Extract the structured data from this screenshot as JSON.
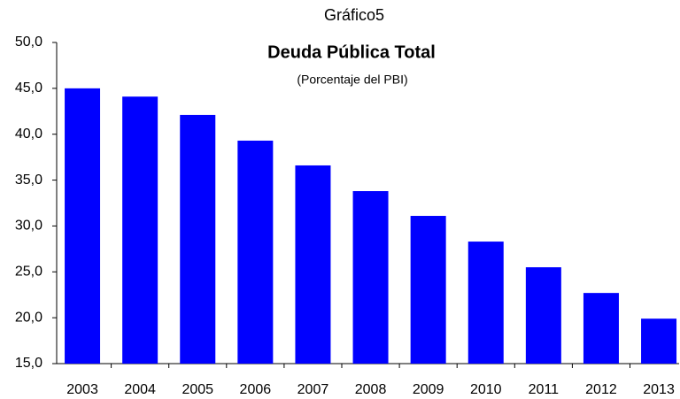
{
  "chart_data": {
    "type": "bar",
    "title": "Gráfico5",
    "subtitle": "Deuda Pública Total",
    "note": "(Porcentaje del PBI)",
    "categories": [
      "2003",
      "2004",
      "2005",
      "2006",
      "2007",
      "2008",
      "2009",
      "2010",
      "2011",
      "2012",
      "2013"
    ],
    "values": [
      45.0,
      44.1,
      42.1,
      39.3,
      36.6,
      33.8,
      31.1,
      28.3,
      25.5,
      22.7,
      19.9
    ],
    "color": "#0000ff",
    "ylim": [
      15,
      50
    ],
    "yticks": [
      {
        "value": 15,
        "label": "15,0"
      },
      {
        "value": 20,
        "label": "20,0"
      },
      {
        "value": 25,
        "label": "25,0"
      },
      {
        "value": 30,
        "label": "30,0"
      },
      {
        "value": 35,
        "label": "35,0"
      },
      {
        "value": 40,
        "label": "40,0"
      },
      {
        "value": 45,
        "label": "45,0"
      },
      {
        "value": 50,
        "label": "50,0"
      }
    ],
    "grid": false
  }
}
